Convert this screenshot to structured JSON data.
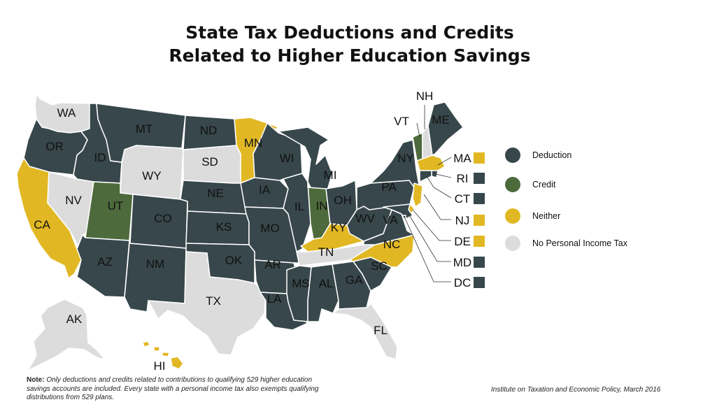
{
  "title": {
    "line1": "State Tax Deductions and Credits",
    "line2": "Related to Higher Education Savings"
  },
  "colors": {
    "Deduction": "#37474b",
    "Credit": "#4d6a3c",
    "Neither": "#e1b824",
    "No Personal Income Tax": "#dcdcdc",
    "border": "#ffffff",
    "label_text": "#111111"
  },
  "legend": [
    {
      "label": "Deduction",
      "category": "Deduction"
    },
    {
      "label": "Credit",
      "category": "Credit"
    },
    {
      "label": "Neither",
      "category": "Neither"
    },
    {
      "label": "No Personal Income Tax",
      "category": "No Personal Income Tax"
    }
  ],
  "states": [
    {
      "abbr": "WA",
      "category": "No Personal Income Tax"
    },
    {
      "abbr": "OR",
      "category": "Deduction"
    },
    {
      "abbr": "CA",
      "category": "Neither"
    },
    {
      "abbr": "NV",
      "category": "No Personal Income Tax"
    },
    {
      "abbr": "ID",
      "category": "Deduction"
    },
    {
      "abbr": "MT",
      "category": "Deduction"
    },
    {
      "abbr": "WY",
      "category": "No Personal Income Tax"
    },
    {
      "abbr": "UT",
      "category": "Credit"
    },
    {
      "abbr": "AZ",
      "category": "Deduction"
    },
    {
      "abbr": "CO",
      "category": "Deduction"
    },
    {
      "abbr": "NM",
      "category": "Deduction"
    },
    {
      "abbr": "ND",
      "category": "Deduction"
    },
    {
      "abbr": "SD",
      "category": "No Personal Income Tax"
    },
    {
      "abbr": "NE",
      "category": "Deduction"
    },
    {
      "abbr": "KS",
      "category": "Deduction"
    },
    {
      "abbr": "OK",
      "category": "Deduction"
    },
    {
      "abbr": "TX",
      "category": "No Personal Income Tax"
    },
    {
      "abbr": "MN",
      "category": "Neither"
    },
    {
      "abbr": "IA",
      "category": "Deduction"
    },
    {
      "abbr": "MO",
      "category": "Deduction"
    },
    {
      "abbr": "AR",
      "category": "Deduction"
    },
    {
      "abbr": "LA",
      "category": "Deduction"
    },
    {
      "abbr": "WI",
      "category": "Deduction"
    },
    {
      "abbr": "IL",
      "category": "Deduction"
    },
    {
      "abbr": "MI",
      "category": "Deduction"
    },
    {
      "abbr": "IN",
      "category": "Credit"
    },
    {
      "abbr": "OH",
      "category": "Deduction"
    },
    {
      "abbr": "KY",
      "category": "Neither"
    },
    {
      "abbr": "TN",
      "category": "No Personal Income Tax"
    },
    {
      "abbr": "MS",
      "category": "Deduction"
    },
    {
      "abbr": "AL",
      "category": "Deduction"
    },
    {
      "abbr": "GA",
      "category": "Deduction"
    },
    {
      "abbr": "FL",
      "category": "No Personal Income Tax"
    },
    {
      "abbr": "SC",
      "category": "Deduction"
    },
    {
      "abbr": "NC",
      "category": "Neither"
    },
    {
      "abbr": "VA",
      "category": "Deduction"
    },
    {
      "abbr": "WV",
      "category": "Deduction"
    },
    {
      "abbr": "PA",
      "category": "Deduction"
    },
    {
      "abbr": "NY",
      "category": "Deduction"
    },
    {
      "abbr": "VT",
      "category": "Credit"
    },
    {
      "abbr": "NH",
      "category": "No Personal Income Tax"
    },
    {
      "abbr": "ME",
      "category": "Deduction"
    },
    {
      "abbr": "MA",
      "category": "Neither"
    },
    {
      "abbr": "RI",
      "category": "Deduction"
    },
    {
      "abbr": "CT",
      "category": "Deduction"
    },
    {
      "abbr": "NJ",
      "category": "Neither"
    },
    {
      "abbr": "DE",
      "category": "Neither"
    },
    {
      "abbr": "MD",
      "category": "Deduction"
    },
    {
      "abbr": "DC",
      "category": "Deduction"
    },
    {
      "abbr": "AK",
      "category": "No Personal Income Tax"
    },
    {
      "abbr": "HI",
      "category": "Neither"
    }
  ],
  "note": {
    "prefix": "Note:",
    "text": "Only deductions and credits related to contributions to qualifying 529 higher education savings accounts are included. Every state with a personal income tax also exempts qualifying distributions from 529 plans."
  },
  "source": "Institute on Taxation and Economic Policy, March 2016"
}
